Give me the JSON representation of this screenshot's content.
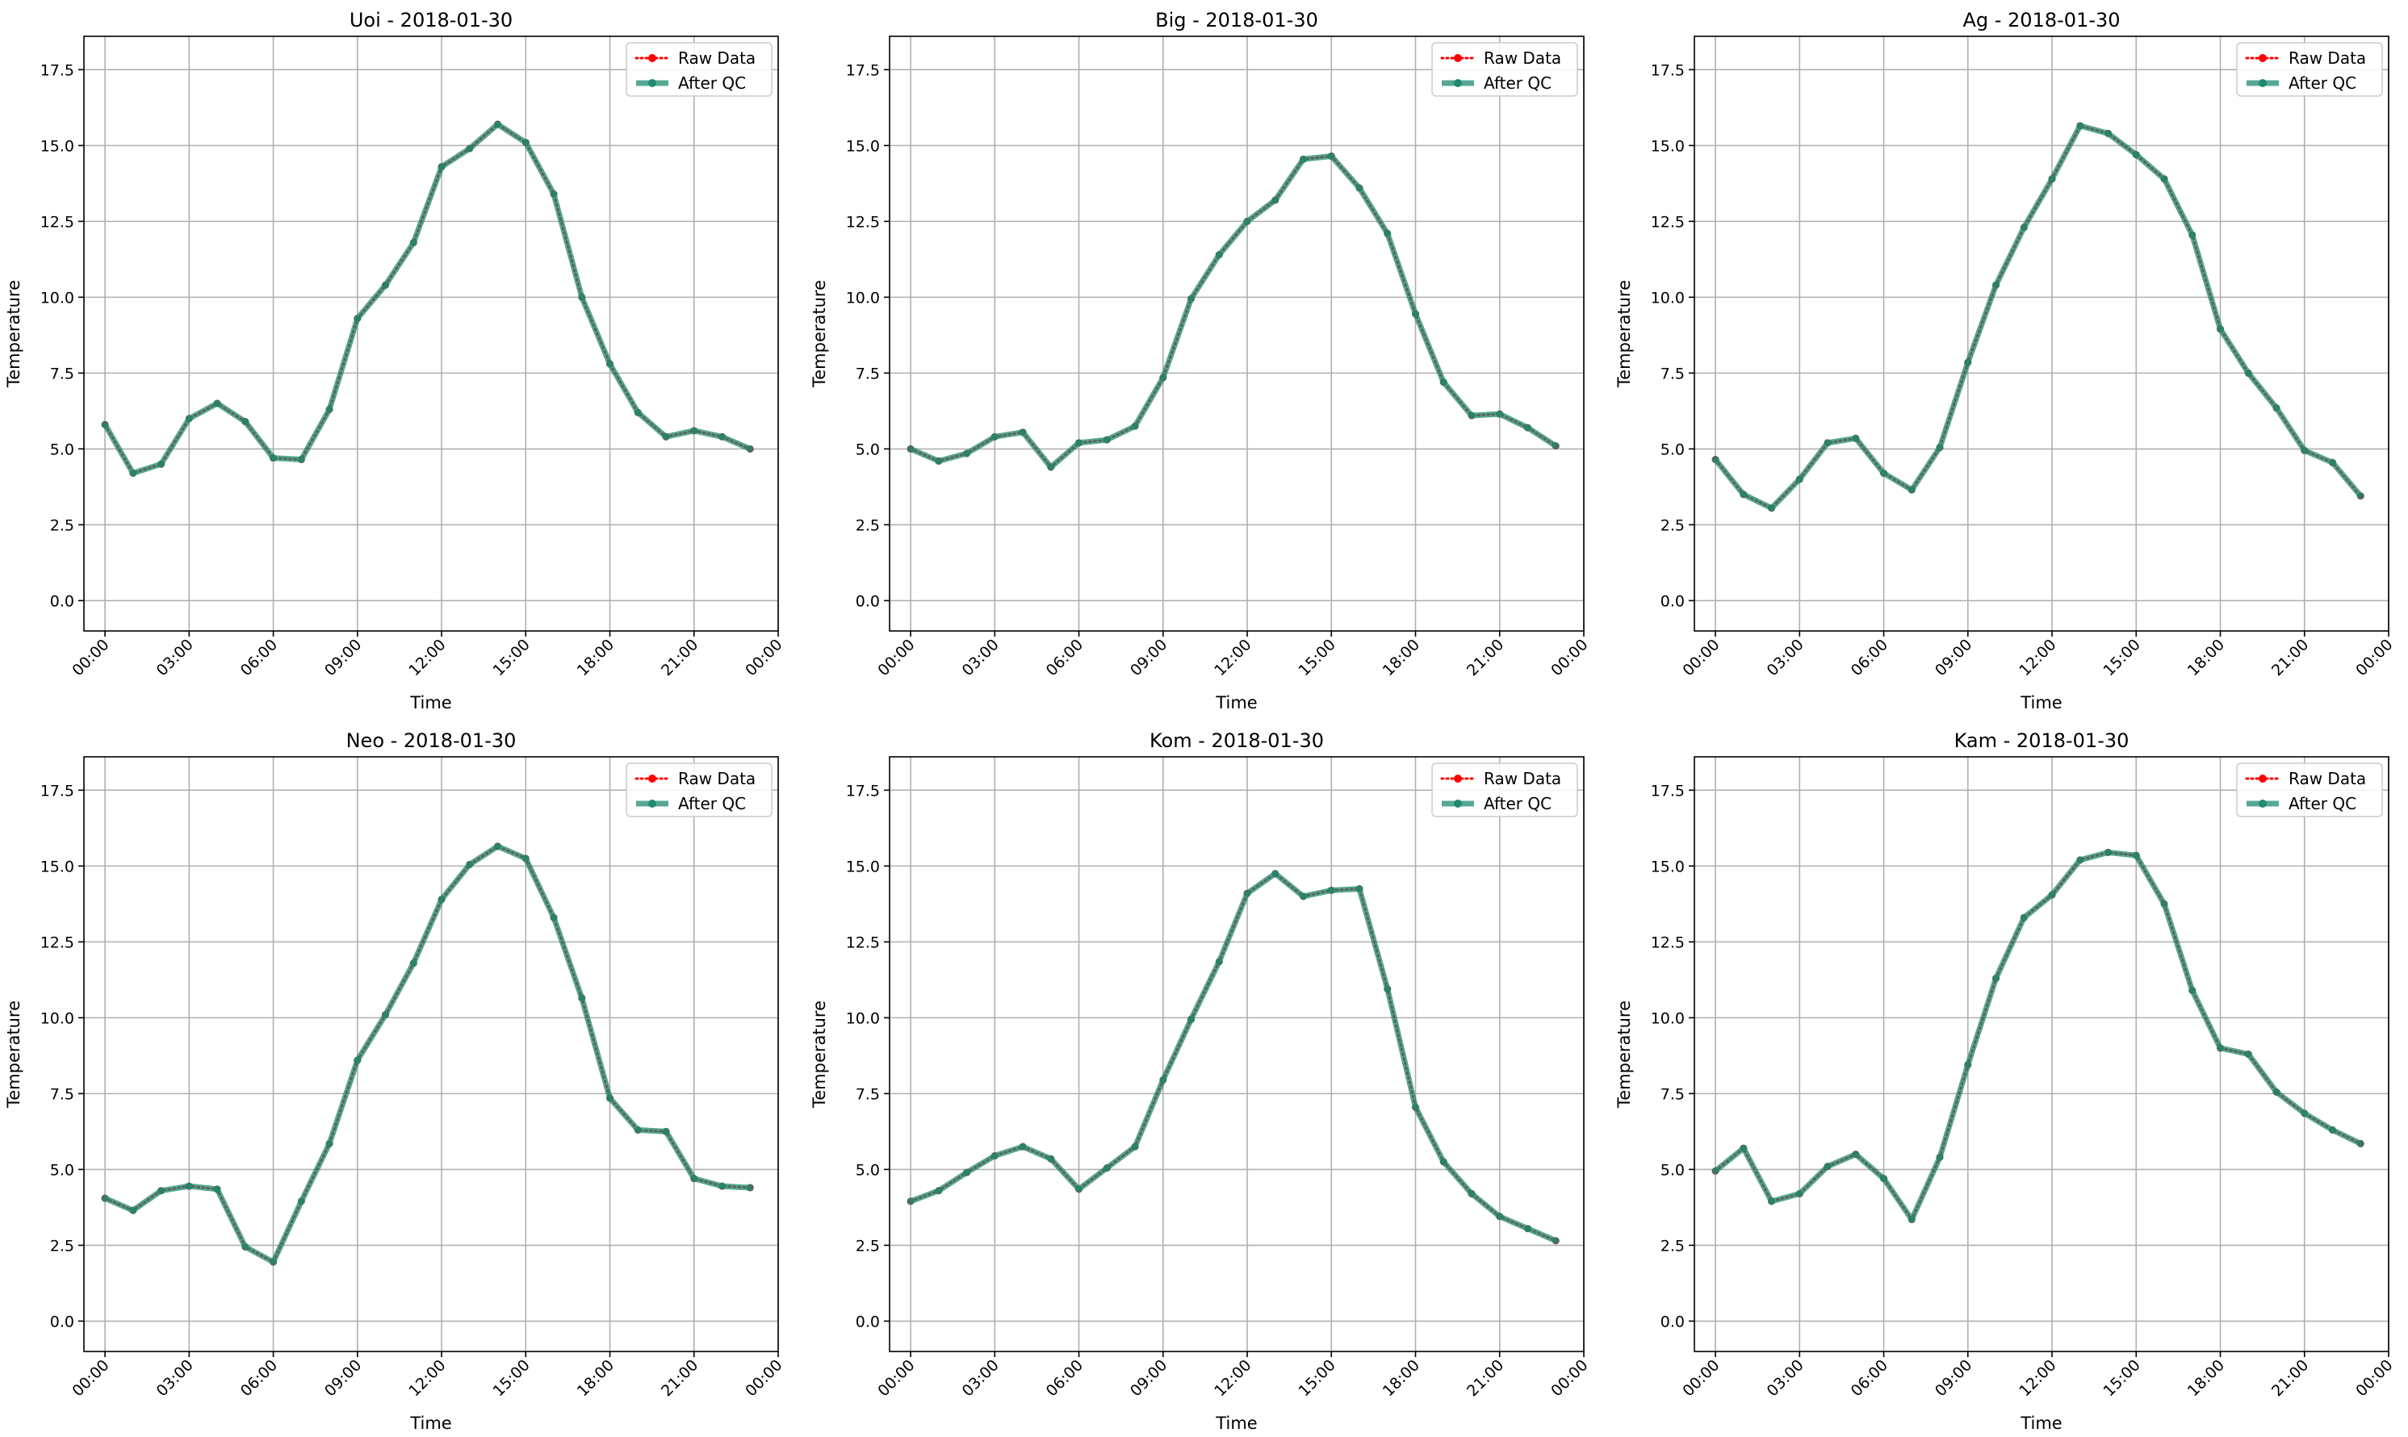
{
  "chart_data": [
    {
      "type": "line",
      "title": "Uoi - 2018-01-30",
      "xlabel": "Time",
      "ylabel": "Temperature",
      "x": [
        "00:00",
        "01:00",
        "02:00",
        "03:00",
        "04:00",
        "05:00",
        "06:00",
        "07:00",
        "08:00",
        "09:00",
        "10:00",
        "11:00",
        "12:00",
        "13:00",
        "14:00",
        "15:00",
        "16:00",
        "17:00",
        "18:00",
        "19:00",
        "20:00",
        "21:00",
        "22:00",
        "23:00"
      ],
      "series": [
        {
          "name": "Raw Data",
          "color": "#ff0000",
          "style": "dotted-markers",
          "values": [
            5.8,
            4.2,
            4.5,
            6.0,
            6.5,
            5.9,
            4.7,
            4.65,
            6.3,
            9.3,
            10.4,
            11.8,
            14.3,
            14.9,
            15.7,
            15.1,
            13.4,
            10.0,
            7.8,
            6.2,
            5.4,
            5.6,
            5.4,
            5.0
          ]
        },
        {
          "name": "After QC",
          "color": "#1f8a70",
          "style": "solid-markers",
          "values": [
            5.8,
            4.2,
            4.5,
            6.0,
            6.5,
            5.9,
            4.7,
            4.65,
            6.3,
            9.3,
            10.4,
            11.8,
            14.3,
            14.9,
            15.7,
            15.1,
            13.4,
            10.0,
            7.8,
            6.2,
            5.4,
            5.6,
            5.4,
            5.0
          ]
        }
      ],
      "ylim": [
        -1.0,
        18.6
      ],
      "yticks": [
        "0.0",
        "2.5",
        "5.0",
        "7.5",
        "10.0",
        "12.5",
        "15.0",
        "17.5"
      ],
      "xticks": [
        "00:00",
        "03:00",
        "06:00",
        "09:00",
        "12:00",
        "15:00",
        "18:00",
        "21:00",
        "00:00"
      ],
      "grid": true,
      "legend": "upper right"
    },
    {
      "type": "line",
      "title": "Big - 2018-01-30",
      "xlabel": "Time",
      "ylabel": "Temperature",
      "x": [
        "00:00",
        "01:00",
        "02:00",
        "03:00",
        "04:00",
        "05:00",
        "06:00",
        "07:00",
        "08:00",
        "09:00",
        "10:00",
        "11:00",
        "12:00",
        "13:00",
        "14:00",
        "15:00",
        "16:00",
        "17:00",
        "18:00",
        "19:00",
        "20:00",
        "21:00",
        "22:00",
        "23:00"
      ],
      "series": [
        {
          "name": "Raw Data",
          "color": "#ff0000",
          "style": "dotted-markers",
          "values": [
            5.0,
            4.6,
            4.85,
            5.4,
            5.55,
            4.4,
            5.2,
            5.3,
            5.75,
            7.35,
            9.95,
            11.4,
            12.5,
            13.2,
            14.55,
            14.65,
            13.6,
            12.1,
            9.45,
            7.2,
            6.1,
            6.15,
            5.7,
            5.1
          ]
        },
        {
          "name": "After QC",
          "color": "#1f8a70",
          "style": "solid-markers",
          "values": [
            5.0,
            4.6,
            4.85,
            5.4,
            5.55,
            4.4,
            5.2,
            5.3,
            5.75,
            7.35,
            9.95,
            11.4,
            12.5,
            13.2,
            14.55,
            14.65,
            13.6,
            12.1,
            9.45,
            7.2,
            6.1,
            6.15,
            5.7,
            5.1
          ]
        }
      ],
      "ylim": [
        -1.0,
        18.6
      ],
      "yticks": [
        "0.0",
        "2.5",
        "5.0",
        "7.5",
        "10.0",
        "12.5",
        "15.0",
        "17.5"
      ],
      "xticks": [
        "00:00",
        "03:00",
        "06:00",
        "09:00",
        "12:00",
        "15:00",
        "18:00",
        "21:00",
        "00:00"
      ],
      "grid": true,
      "legend": "upper right"
    },
    {
      "type": "line",
      "title": "Ag - 2018-01-30",
      "xlabel": "Time",
      "ylabel": "Temperature",
      "x": [
        "00:00",
        "01:00",
        "02:00",
        "03:00",
        "04:00",
        "05:00",
        "06:00",
        "07:00",
        "08:00",
        "09:00",
        "10:00",
        "11:00",
        "12:00",
        "13:00",
        "14:00",
        "15:00",
        "16:00",
        "17:00",
        "18:00",
        "19:00",
        "20:00",
        "21:00",
        "22:00",
        "23:00"
      ],
      "series": [
        {
          "name": "Raw Data",
          "color": "#ff0000",
          "style": "dotted-markers",
          "values": [
            4.65,
            3.5,
            3.05,
            4.0,
            5.2,
            5.35,
            4.2,
            3.65,
            5.05,
            7.85,
            10.4,
            12.3,
            13.9,
            15.65,
            15.4,
            14.7,
            13.9,
            12.05,
            8.95,
            7.5,
            6.35,
            4.95,
            4.55,
            3.45
          ]
        },
        {
          "name": "After QC",
          "color": "#1f8a70",
          "style": "solid-markers",
          "values": [
            4.65,
            3.5,
            3.05,
            4.0,
            5.2,
            5.35,
            4.2,
            3.65,
            5.05,
            7.85,
            10.4,
            12.3,
            13.9,
            15.65,
            15.4,
            14.7,
            13.9,
            12.05,
            8.95,
            7.5,
            6.35,
            4.95,
            4.55,
            3.45
          ]
        }
      ],
      "ylim": [
        -1.0,
        18.6
      ],
      "yticks": [
        "0.0",
        "2.5",
        "5.0",
        "7.5",
        "10.0",
        "12.5",
        "15.0",
        "17.5"
      ],
      "xticks": [
        "00:00",
        "03:00",
        "06:00",
        "09:00",
        "12:00",
        "15:00",
        "18:00",
        "21:00",
        "00:00"
      ],
      "grid": true,
      "legend": "upper right"
    },
    {
      "type": "line",
      "title": "Neo - 2018-01-30",
      "xlabel": "Time",
      "ylabel": "Temperature",
      "x": [
        "00:00",
        "01:00",
        "02:00",
        "03:00",
        "04:00",
        "05:00",
        "06:00",
        "07:00",
        "08:00",
        "09:00",
        "10:00",
        "11:00",
        "12:00",
        "13:00",
        "14:00",
        "15:00",
        "16:00",
        "17:00",
        "18:00",
        "19:00",
        "20:00",
        "21:00",
        "22:00",
        "23:00"
      ],
      "series": [
        {
          "name": "Raw Data",
          "color": "#ff0000",
          "style": "dotted-markers",
          "values": [
            4.05,
            3.65,
            4.3,
            4.45,
            4.35,
            2.45,
            1.95,
            3.95,
            5.85,
            8.6,
            10.1,
            11.8,
            13.9,
            15.05,
            15.65,
            15.25,
            13.3,
            10.65,
            7.35,
            6.3,
            6.25,
            4.7,
            4.45,
            4.4
          ]
        },
        {
          "name": "After QC",
          "color": "#1f8a70",
          "style": "solid-markers",
          "values": [
            4.05,
            3.65,
            4.3,
            4.45,
            4.35,
            2.45,
            1.95,
            3.95,
            5.85,
            8.6,
            10.1,
            11.8,
            13.9,
            15.05,
            15.65,
            15.25,
            13.3,
            10.65,
            7.35,
            6.3,
            6.25,
            4.7,
            4.45,
            4.4
          ]
        }
      ],
      "ylim": [
        -1.0,
        18.6
      ],
      "yticks": [
        "0.0",
        "2.5",
        "5.0",
        "7.5",
        "10.0",
        "12.5",
        "15.0",
        "17.5"
      ],
      "xticks": [
        "00:00",
        "03:00",
        "06:00",
        "09:00",
        "12:00",
        "15:00",
        "18:00",
        "21:00",
        "00:00"
      ],
      "grid": true,
      "legend": "upper right"
    },
    {
      "type": "line",
      "title": "Kom - 2018-01-30",
      "xlabel": "Time",
      "ylabel": "Temperature",
      "x": [
        "00:00",
        "01:00",
        "02:00",
        "03:00",
        "04:00",
        "05:00",
        "06:00",
        "07:00",
        "08:00",
        "09:00",
        "10:00",
        "11:00",
        "12:00",
        "13:00",
        "14:00",
        "15:00",
        "16:00",
        "17:00",
        "18:00",
        "19:00",
        "20:00",
        "21:00",
        "22:00",
        "23:00"
      ],
      "series": [
        {
          "name": "Raw Data",
          "color": "#ff0000",
          "style": "dotted-markers",
          "values": [
            3.95,
            4.3,
            4.9,
            5.45,
            5.75,
            5.35,
            4.35,
            5.05,
            5.75,
            7.95,
            9.95,
            11.85,
            14.1,
            14.75,
            14.0,
            14.2,
            14.25,
            10.95,
            7.05,
            5.25,
            4.2,
            3.45,
            3.05,
            2.65
          ]
        },
        {
          "name": "After QC",
          "color": "#1f8a70",
          "style": "solid-markers",
          "values": [
            3.95,
            4.3,
            4.9,
            5.45,
            5.75,
            5.35,
            4.35,
            5.05,
            5.75,
            7.95,
            9.95,
            11.85,
            14.1,
            14.75,
            14.0,
            14.2,
            14.25,
            10.95,
            7.05,
            5.25,
            4.2,
            3.45,
            3.05,
            2.65
          ]
        }
      ],
      "ylim": [
        -1.0,
        18.6
      ],
      "yticks": [
        "0.0",
        "2.5",
        "5.0",
        "7.5",
        "10.0",
        "12.5",
        "15.0",
        "17.5"
      ],
      "xticks": [
        "00:00",
        "03:00",
        "06:00",
        "09:00",
        "12:00",
        "15:00",
        "18:00",
        "21:00",
        "00:00"
      ],
      "grid": true,
      "legend": "upper right"
    },
    {
      "type": "line",
      "title": "Kam - 2018-01-30",
      "xlabel": "Time",
      "ylabel": "Temperature",
      "x": [
        "00:00",
        "01:00",
        "02:00",
        "03:00",
        "04:00",
        "05:00",
        "06:00",
        "07:00",
        "08:00",
        "09:00",
        "10:00",
        "11:00",
        "12:00",
        "13:00",
        "14:00",
        "15:00",
        "16:00",
        "17:00",
        "18:00",
        "19:00",
        "20:00",
        "21:00",
        "22:00",
        "23:00"
      ],
      "series": [
        {
          "name": "Raw Data",
          "color": "#ff0000",
          "style": "dotted-markers",
          "values": [
            4.95,
            5.7,
            3.95,
            4.2,
            5.1,
            5.5,
            4.7,
            3.35,
            5.4,
            8.45,
            11.3,
            13.3,
            14.05,
            15.2,
            15.45,
            15.35,
            13.75,
            10.9,
            9.0,
            8.8,
            7.55,
            6.85,
            6.3,
            5.85
          ]
        },
        {
          "name": "After QC",
          "color": "#1f8a70",
          "style": "solid-markers",
          "values": [
            4.95,
            5.7,
            3.95,
            4.2,
            5.1,
            5.5,
            4.7,
            3.35,
            5.4,
            8.45,
            11.3,
            13.3,
            14.05,
            15.2,
            15.45,
            15.35,
            13.75,
            10.9,
            9.0,
            8.8,
            7.55,
            6.85,
            6.3,
            5.85
          ]
        }
      ],
      "ylim": [
        -1.0,
        18.6
      ],
      "yticks": [
        "0.0",
        "2.5",
        "5.0",
        "7.5",
        "10.0",
        "12.5",
        "15.0",
        "17.5"
      ],
      "xticks": [
        "00:00",
        "03:00",
        "06:00",
        "09:00",
        "12:00",
        "15:00",
        "18:00",
        "21:00",
        "00:00"
      ],
      "grid": true,
      "legend": "upper right"
    }
  ]
}
